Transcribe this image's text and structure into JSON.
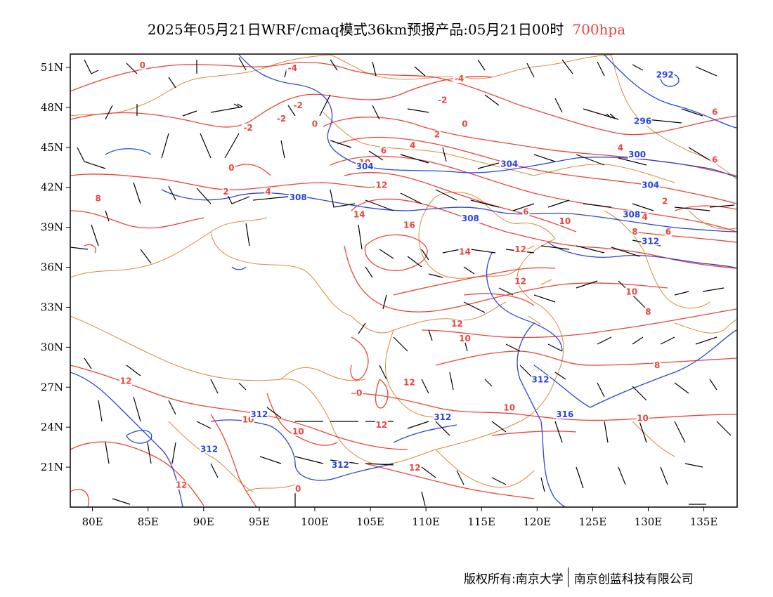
{
  "title": {
    "main": "2025年05月21日WRF/cmaq模式36km预报产品:05月21日00时",
    "level": "700hpa"
  },
  "axes": {
    "lat_labels": [
      "51N",
      "48N",
      "45N",
      "42N",
      "39N",
      "36N",
      "33N",
      "30N",
      "27N",
      "24N",
      "21N"
    ],
    "lat_values": [
      51,
      48,
      45,
      42,
      39,
      36,
      33,
      30,
      27,
      24,
      21
    ],
    "lon_labels": [
      "80E",
      "85E",
      "90E",
      "95E",
      "100E",
      "105E",
      "110E",
      "115E",
      "120E",
      "125E",
      "130E",
      "135E"
    ],
    "lon_values": [
      80,
      85,
      90,
      95,
      100,
      105,
      110,
      115,
      120,
      125,
      130,
      135
    ],
    "lon_range": [
      78,
      138
    ],
    "lat_range": [
      18,
      52
    ]
  },
  "contours": {
    "temperature_color": "#e8453c",
    "height_color": "#2b46d8",
    "boundary_color": "#d98a3a",
    "temperature_labels": [
      {
        "text": "0",
        "lon": 84.5,
        "lat": 51
      },
      {
        "text": "-4",
        "lon": 98,
        "lat": 50.8
      },
      {
        "text": "-4",
        "lon": 113,
        "lat": 50
      },
      {
        "text": "-2",
        "lon": 111.5,
        "lat": 48.4
      },
      {
        "text": "-2",
        "lon": 98.5,
        "lat": 48
      },
      {
        "text": "-2",
        "lon": 97,
        "lat": 47
      },
      {
        "text": "0",
        "lon": 100,
        "lat": 46.6
      },
      {
        "text": "-2",
        "lon": 94,
        "lat": 46.3
      },
      {
        "text": "0",
        "lon": 113.5,
        "lat": 46.6
      },
      {
        "text": "2",
        "lon": 111,
        "lat": 45.8
      },
      {
        "text": "4",
        "lon": 108.8,
        "lat": 45
      },
      {
        "text": "6",
        "lon": 106.2,
        "lat": 44.6
      },
      {
        "text": "10",
        "lon": 104.5,
        "lat": 43.7
      },
      {
        "text": "0",
        "lon": 92.5,
        "lat": 43.3
      },
      {
        "text": "12",
        "lon": 106,
        "lat": 42
      },
      {
        "text": "4",
        "lon": 95.8,
        "lat": 41.5
      },
      {
        "text": "2",
        "lon": 92,
        "lat": 41.5
      },
      {
        "text": "8",
        "lon": 80.5,
        "lat": 41
      },
      {
        "text": "14",
        "lon": 104,
        "lat": 39.8
      },
      {
        "text": "16",
        "lon": 108.5,
        "lat": 39
      },
      {
        "text": "14",
        "lon": 113.5,
        "lat": 37
      },
      {
        "text": "12",
        "lon": 118.5,
        "lat": 37.2
      },
      {
        "text": "12",
        "lon": 118.5,
        "lat": 34.8
      },
      {
        "text": "6",
        "lon": 119,
        "lat": 40
      },
      {
        "text": "10",
        "lon": 122.5,
        "lat": 39.3
      },
      {
        "text": "8",
        "lon": 128.8,
        "lat": 38.5
      },
      {
        "text": "12",
        "lon": 112.8,
        "lat": 31.6
      },
      {
        "text": "10",
        "lon": 113.5,
        "lat": 30.5
      },
      {
        "text": "10",
        "lon": 128.5,
        "lat": 34
      },
      {
        "text": "8",
        "lon": 130,
        "lat": 32.5
      },
      {
        "text": "8",
        "lon": 130.8,
        "lat": 28.5
      },
      {
        "text": "12",
        "lon": 108.5,
        "lat": 27.2
      },
      {
        "text": "12",
        "lon": 83,
        "lat": 27.3
      },
      {
        "text": "10",
        "lon": 94,
        "lat": 24.4
      },
      {
        "text": "10",
        "lon": 98.5,
        "lat": 23.5
      },
      {
        "text": "12",
        "lon": 106,
        "lat": 24
      },
      {
        "text": "10",
        "lon": 117.5,
        "lat": 25.3
      },
      {
        "text": "10",
        "lon": 129.5,
        "lat": 24.5
      },
      {
        "text": "12",
        "lon": 109,
        "lat": 20.8
      },
      {
        "text": "12",
        "lon": 88,
        "lat": 19.5
      },
      {
        "text": "6",
        "lon": 136,
        "lat": 47.5
      },
      {
        "text": "6",
        "lon": 136,
        "lat": 43.9
      },
      {
        "text": "2",
        "lon": 131.5,
        "lat": 40.8
      },
      {
        "text": "4",
        "lon": 129.7,
        "lat": 39.6
      },
      {
        "text": "6",
        "lon": 131.8,
        "lat": 38.5
      },
      {
        "text": "4",
        "lon": 127.5,
        "lat": 44.8
      },
      {
        "text": "0",
        "lon": 104,
        "lat": 26.4
      },
      {
        "text": "0",
        "lon": 98.5,
        "lat": 19.2
      }
    ],
    "height_labels": [
      {
        "text": "292",
        "lon": 131.5,
        "lat": 50.3
      },
      {
        "text": "296",
        "lon": 129.5,
        "lat": 46.8
      },
      {
        "text": "300",
        "lon": 129,
        "lat": 44.3
      },
      {
        "text": "304",
        "lon": 104.5,
        "lat": 43.4
      },
      {
        "text": "304",
        "lon": 117.5,
        "lat": 43.6
      },
      {
        "text": "304",
        "lon": 130.2,
        "lat": 42
      },
      {
        "text": "308",
        "lon": 98.5,
        "lat": 41.1
      },
      {
        "text": "308",
        "lon": 114,
        "lat": 39.5
      },
      {
        "text": "308",
        "lon": 128.5,
        "lat": 39.8
      },
      {
        "text": "312",
        "lon": 130.2,
        "lat": 37.8
      },
      {
        "text": "312",
        "lon": 95,
        "lat": 24.8
      },
      {
        "text": "312",
        "lon": 90.5,
        "lat": 22.2
      },
      {
        "text": "312",
        "lon": 120.3,
        "lat": 27.4
      },
      {
        "text": "312",
        "lon": 111.5,
        "lat": 24.6
      },
      {
        "text": "312",
        "lon": 102.3,
        "lat": 21
      },
      {
        "text": "316",
        "lon": 122.5,
        "lat": 24.8
      }
    ]
  },
  "copyright": {
    "left": "版权所有:南京大学",
    "right": "南京创蓝科技有限公司"
  }
}
